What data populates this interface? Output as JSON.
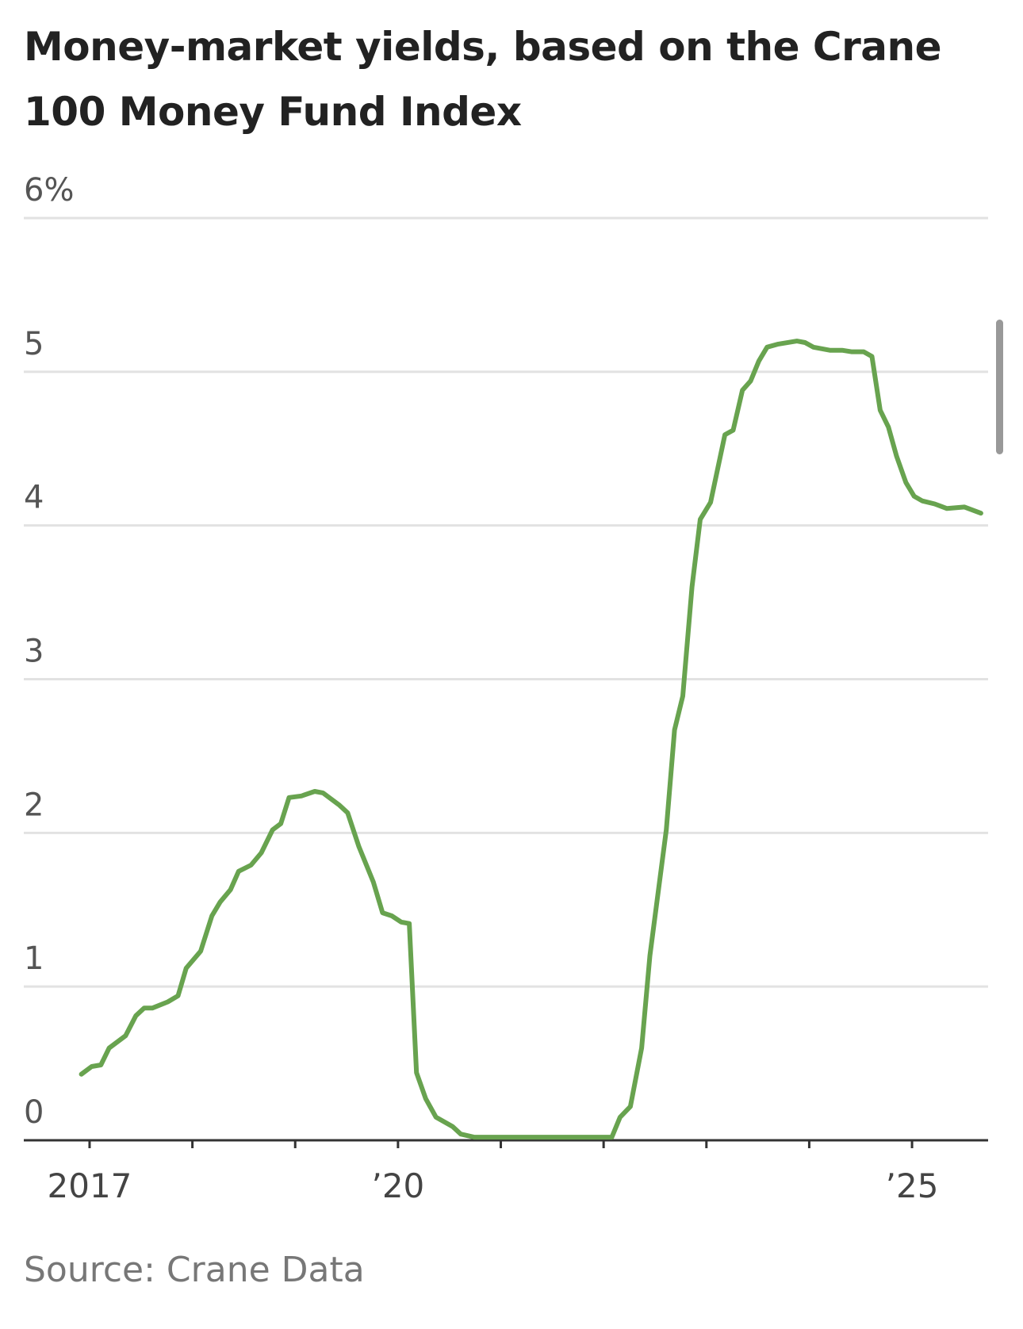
{
  "chart_data": {
    "type": "line",
    "title": "Money-market yields, based on the Crane 100 Money Fund Index",
    "source": "Source: Crane Data",
    "x": [
      2016.92,
      2017.02,
      2017.11,
      2017.19,
      2017.35,
      2017.45,
      2017.53,
      2017.61,
      2017.76,
      2017.86,
      2017.94,
      2018.08,
      2018.19,
      2018.27,
      2018.37,
      2018.45,
      2018.57,
      2018.67,
      2018.78,
      2018.86,
      2018.94,
      2019.06,
      2019.19,
      2019.27,
      2019.43,
      2019.51,
      2019.62,
      2019.76,
      2019.85,
      2019.94,
      2020.03,
      2020.11,
      2020.18,
      2020.27,
      2020.37,
      2020.53,
      2020.61,
      2020.74,
      2022.08,
      2022.16,
      2022.26,
      2022.37,
      2022.45,
      2022.61,
      2022.69,
      2022.77,
      2022.86,
      2022.94,
      2023.04,
      2023.18,
      2023.26,
      2023.35,
      2023.43,
      2023.51,
      2023.59,
      2023.7,
      2023.88,
      2023.96,
      2024.04,
      2024.2,
      2024.32,
      2024.41,
      2024.53,
      2024.61,
      2024.69,
      2024.77,
      2024.85,
      2024.94,
      2025.02,
      2025.1,
      2025.22,
      2025.34,
      2025.51,
      2025.67
    ],
    "series": [
      {
        "color": "#68a34f",
        "values": [
          0.43,
          0.48,
          0.49,
          0.6,
          0.68,
          0.81,
          0.86,
          0.86,
          0.9,
          0.94,
          1.12,
          1.23,
          1.46,
          1.55,
          1.63,
          1.75,
          1.79,
          1.87,
          2.02,
          2.06,
          2.23,
          2.24,
          2.27,
          2.26,
          2.18,
          2.13,
          1.91,
          1.68,
          1.48,
          1.46,
          1.42,
          1.41,
          0.44,
          0.27,
          0.15,
          0.09,
          0.04,
          0.02,
          0.02,
          0.15,
          0.22,
          0.6,
          1.2,
          2.02,
          2.67,
          2.89,
          3.6,
          4.04,
          4.15,
          4.59,
          4.62,
          4.88,
          4.94,
          5.07,
          5.16,
          5.18,
          5.2,
          5.19,
          5.16,
          5.14,
          5.14,
          5.13,
          5.13,
          5.1,
          4.75,
          4.64,
          4.45,
          4.28,
          4.19,
          4.16,
          4.14,
          4.11,
          4.12,
          4.08
        ]
      }
    ],
    "xlim": [
      2016.36,
      2025.74
    ],
    "xticks": [
      2017,
      {
        "value": 2020,
        "label": "’20"
      },
      {
        "value": 2025,
        "label": "’25"
      }
    ],
    "xminorticks": [
      2018,
      2019,
      2021,
      2022,
      2023,
      2024
    ],
    "ylim": [
      0,
      6
    ],
    "yticks": [
      0,
      1,
      2,
      3,
      4,
      5,
      {
        "value": 6,
        "label": "6%"
      }
    ],
    "grid": true
  }
}
